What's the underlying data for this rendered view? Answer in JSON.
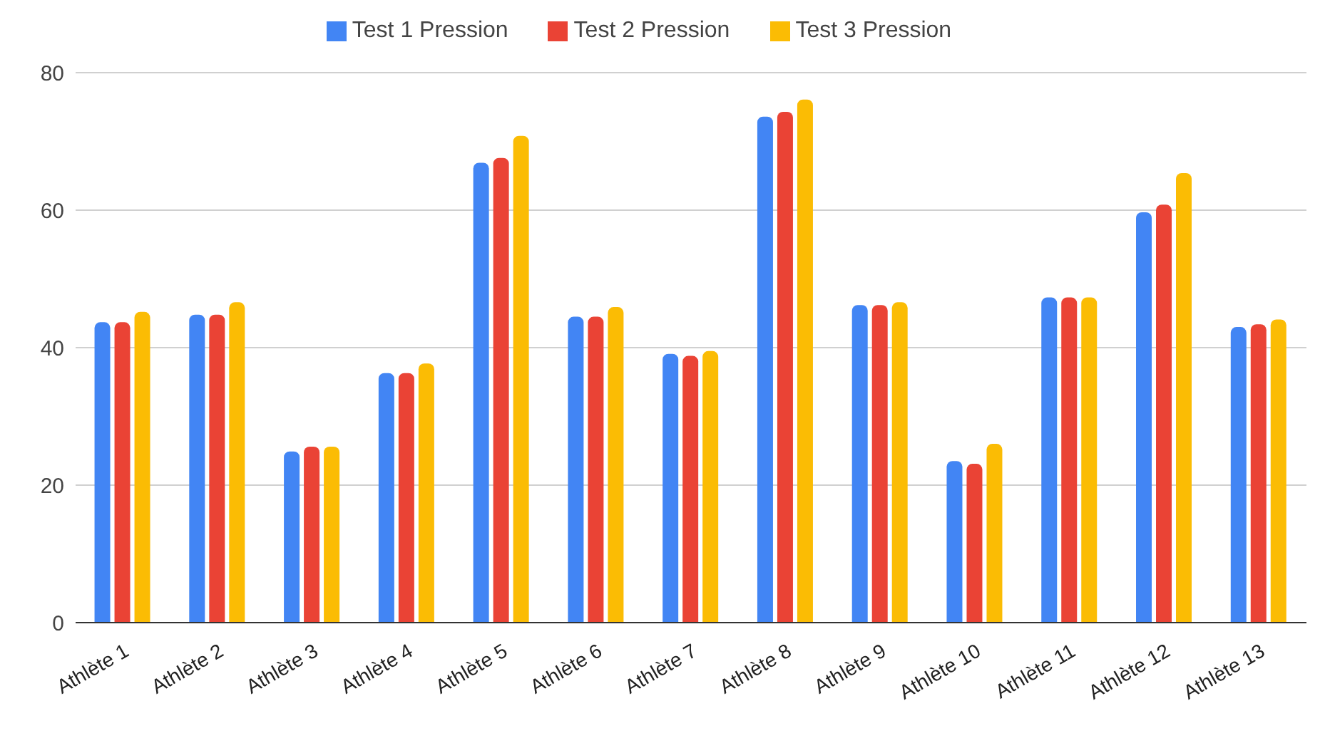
{
  "chart_data": {
    "type": "bar",
    "categories": [
      "Athlète 1",
      "Athlète 2",
      "Athlète 3",
      "Athlète 4",
      "Athlète 5",
      "Athlète 6",
      "Athlète 7",
      "Athlète 8",
      "Athlète 9",
      "Athlète 10",
      "Athlète 11",
      "Athlète 12",
      "Athlète 13"
    ],
    "series": [
      {
        "name": "Test 1 Pression",
        "color": "#4285f4",
        "values": [
          43.7,
          44.8,
          24.9,
          36.3,
          66.9,
          44.5,
          39.1,
          73.6,
          46.2,
          23.5,
          47.3,
          59.7,
          43.0
        ]
      },
      {
        "name": "Test 2 Pression",
        "color": "#ea4335",
        "values": [
          43.7,
          44.8,
          25.6,
          36.3,
          67.6,
          44.5,
          38.8,
          74.3,
          46.2,
          23.1,
          47.3,
          60.8,
          43.4
        ]
      },
      {
        "name": "Test 3 Pression",
        "color": "#fbbc04",
        "values": [
          45.2,
          46.6,
          25.6,
          37.7,
          70.8,
          45.9,
          39.5,
          76.1,
          46.6,
          26.0,
          47.3,
          65.4,
          44.1
        ]
      }
    ],
    "ylim": [
      0,
      80
    ],
    "yticks": [
      0,
      20,
      40,
      60,
      80
    ],
    "grid": "y",
    "legend": "top"
  }
}
